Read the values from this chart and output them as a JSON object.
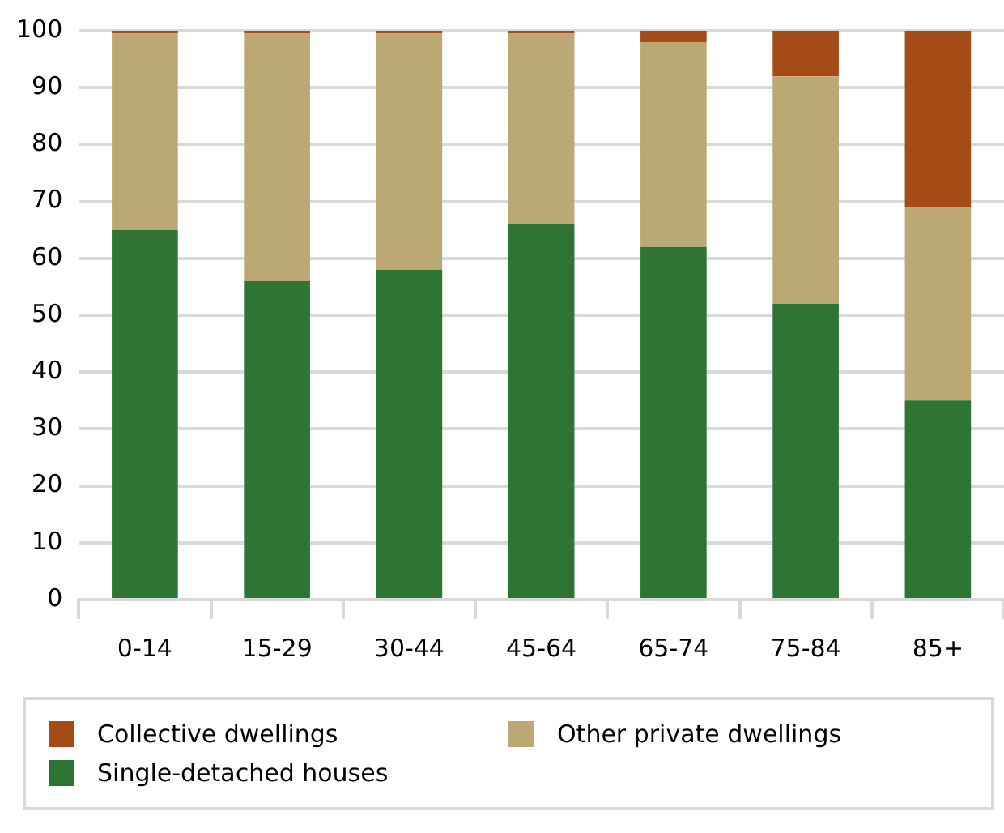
{
  "chart_data": {
    "type": "bar",
    "stacked": true,
    "categories": [
      "0-14",
      "15-29",
      "30-44",
      "45-64",
      "65-74",
      "75-84",
      "85+"
    ],
    "series": [
      {
        "name": "Single-detached houses",
        "color": "#2e7534",
        "values": [
          65,
          56,
          58,
          66,
          62,
          52,
          35
        ]
      },
      {
        "name": "Other private dwellings",
        "color": "#bca875",
        "values": [
          34.5,
          43.5,
          41.5,
          33.5,
          36,
          40,
          34
        ]
      },
      {
        "name": "Collective dwellings",
        "color": "#a44b17",
        "values": [
          0.5,
          0.5,
          0.5,
          0.5,
          2,
          8,
          31
        ]
      }
    ],
    "ylim": [
      0,
      100
    ],
    "yticks": [
      0,
      10,
      20,
      30,
      40,
      50,
      60,
      70,
      80,
      90,
      100
    ],
    "grid": "y",
    "legend": "bottom"
  }
}
